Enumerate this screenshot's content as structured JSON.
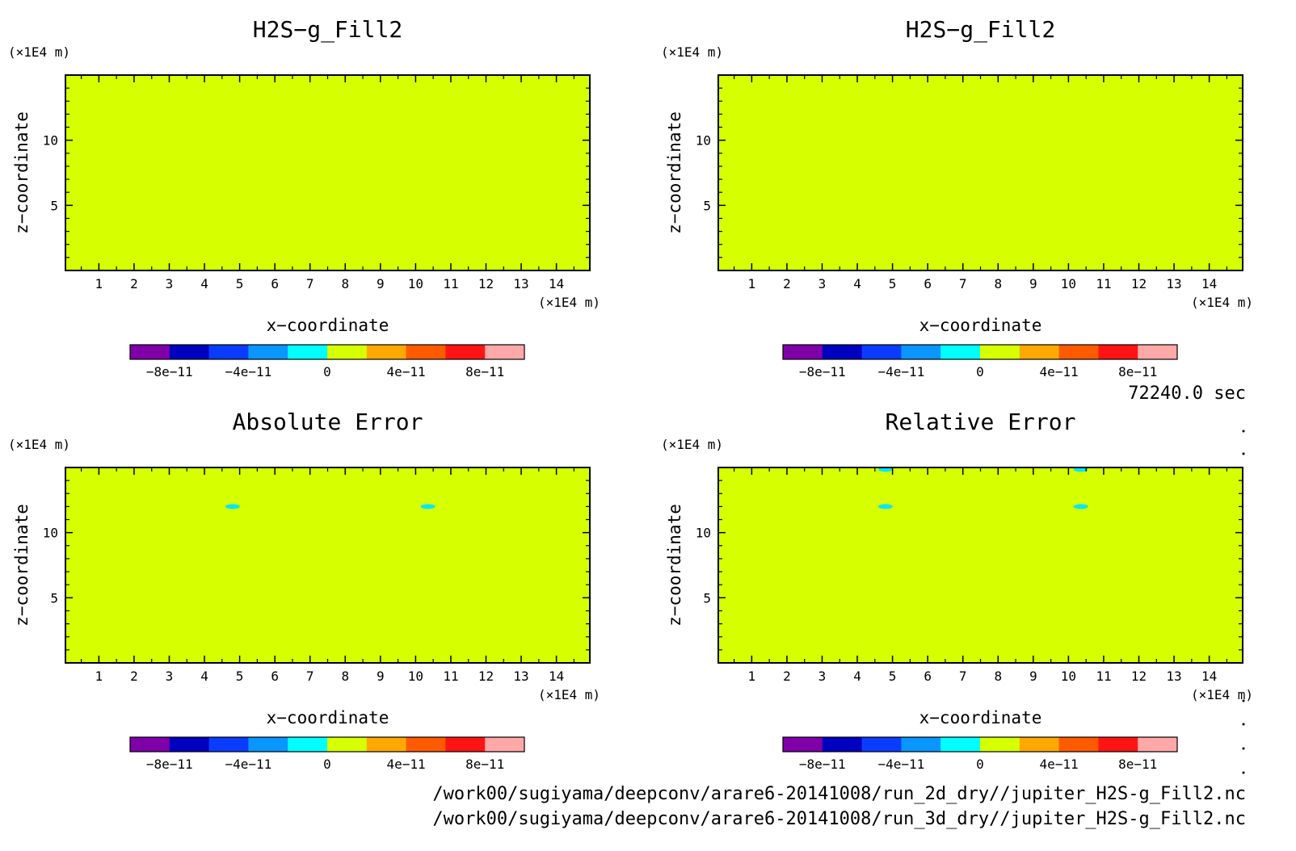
{
  "colormap": [
    "#7f00a8",
    "#0000c0",
    "#0a3cff",
    "#0a96ff",
    "#00ffff",
    "#d6ff00",
    "#ffa800",
    "#ff5a00",
    "#ff1414",
    "#ffa8a8"
  ],
  "field_color": "#d6ff00",
  "spot_color": "#00e8ff",
  "time_label": "72240.0 sec",
  "files": [
    "/work00/sugiyama/deepconv/arare6-20141008/run_2d_dry//jupiter_H2S-g_Fill2.nc",
    "/work00/sugiyama/deepconv/arare6-20141008/run_3d_dry//jupiter_H2S-g_Fill2.nc"
  ],
  "chart_data": [
    {
      "type": "heatmap",
      "title": "H2S−g_Fill2",
      "xlabel": "x−coordinate",
      "ylabel": "z−coordinate",
      "x_unit": "(×1E4 m)",
      "y_unit": "(×1E4 m)",
      "xlim": [
        0.05,
        14.95
      ],
      "ylim": [
        0,
        15
      ],
      "x_ticks": [
        "1",
        "2",
        "3",
        "4",
        "5",
        "6",
        "7",
        "8",
        "9",
        "10",
        "11",
        "12",
        "13",
        "14"
      ],
      "y_ticks": [
        "5",
        "10"
      ],
      "colorbar_labels": [
        "−8e−11",
        "−4e−11",
        "0",
        "4e−11",
        "8e−11"
      ],
      "value": 0,
      "spots": []
    },
    {
      "type": "heatmap",
      "title": "H2S−g_Fill2",
      "xlabel": "x−coordinate",
      "ylabel": "z−coordinate",
      "x_unit": "(×1E4 m)",
      "y_unit": "(×1E4 m)",
      "xlim": [
        0.05,
        14.95
      ],
      "ylim": [
        0,
        15
      ],
      "x_ticks": [
        "1",
        "2",
        "3",
        "4",
        "5",
        "6",
        "7",
        "8",
        "9",
        "10",
        "11",
        "12",
        "13",
        "14"
      ],
      "y_ticks": [
        "5",
        "10"
      ],
      "colorbar_labels": [
        "−8e−11",
        "−4e−11",
        "0",
        "4e−11",
        "8e−11"
      ],
      "value": 0,
      "spots": []
    },
    {
      "type": "heatmap",
      "title": "Absolute Error",
      "xlabel": "x−coordinate",
      "ylabel": "z−coordinate",
      "x_unit": "(×1E4 m)",
      "y_unit": "(×1E4 m)",
      "xlim": [
        0.05,
        14.95
      ],
      "ylim": [
        0,
        15
      ],
      "x_ticks": [
        "1",
        "2",
        "3",
        "4",
        "5",
        "6",
        "7",
        "8",
        "9",
        "10",
        "11",
        "12",
        "13",
        "14"
      ],
      "y_ticks": [
        "5",
        "10"
      ],
      "colorbar_labels": [
        "−8e−11",
        "−4e−11",
        "0",
        "4e−11",
        "8e−11"
      ],
      "value": 0,
      "spots": [
        {
          "x": 4.8,
          "z": 12.0
        },
        {
          "x": 10.35,
          "z": 12.0
        }
      ]
    },
    {
      "type": "heatmap",
      "title": "Relative Error",
      "xlabel": "x−coordinate",
      "ylabel": "z−coordinate",
      "x_unit": "(×1E4 m)",
      "y_unit": "(×1E4 m)",
      "xlim": [
        0.05,
        14.95
      ],
      "ylim": [
        0,
        15
      ],
      "x_ticks": [
        "1",
        "2",
        "3",
        "4",
        "5",
        "6",
        "7",
        "8",
        "9",
        "10",
        "11",
        "12",
        "13",
        "14"
      ],
      "y_ticks": [
        "5",
        "10"
      ],
      "colorbar_labels": [
        "−8e−11",
        "−4e−11",
        "0",
        "4e−11",
        "8e−11"
      ],
      "value": 0,
      "spots": [
        {
          "x": 4.8,
          "z": 12.0
        },
        {
          "x": 10.35,
          "z": 12.0
        },
        {
          "x": 4.8,
          "z": 14.85
        },
        {
          "x": 10.35,
          "z": 14.85
        }
      ]
    }
  ]
}
